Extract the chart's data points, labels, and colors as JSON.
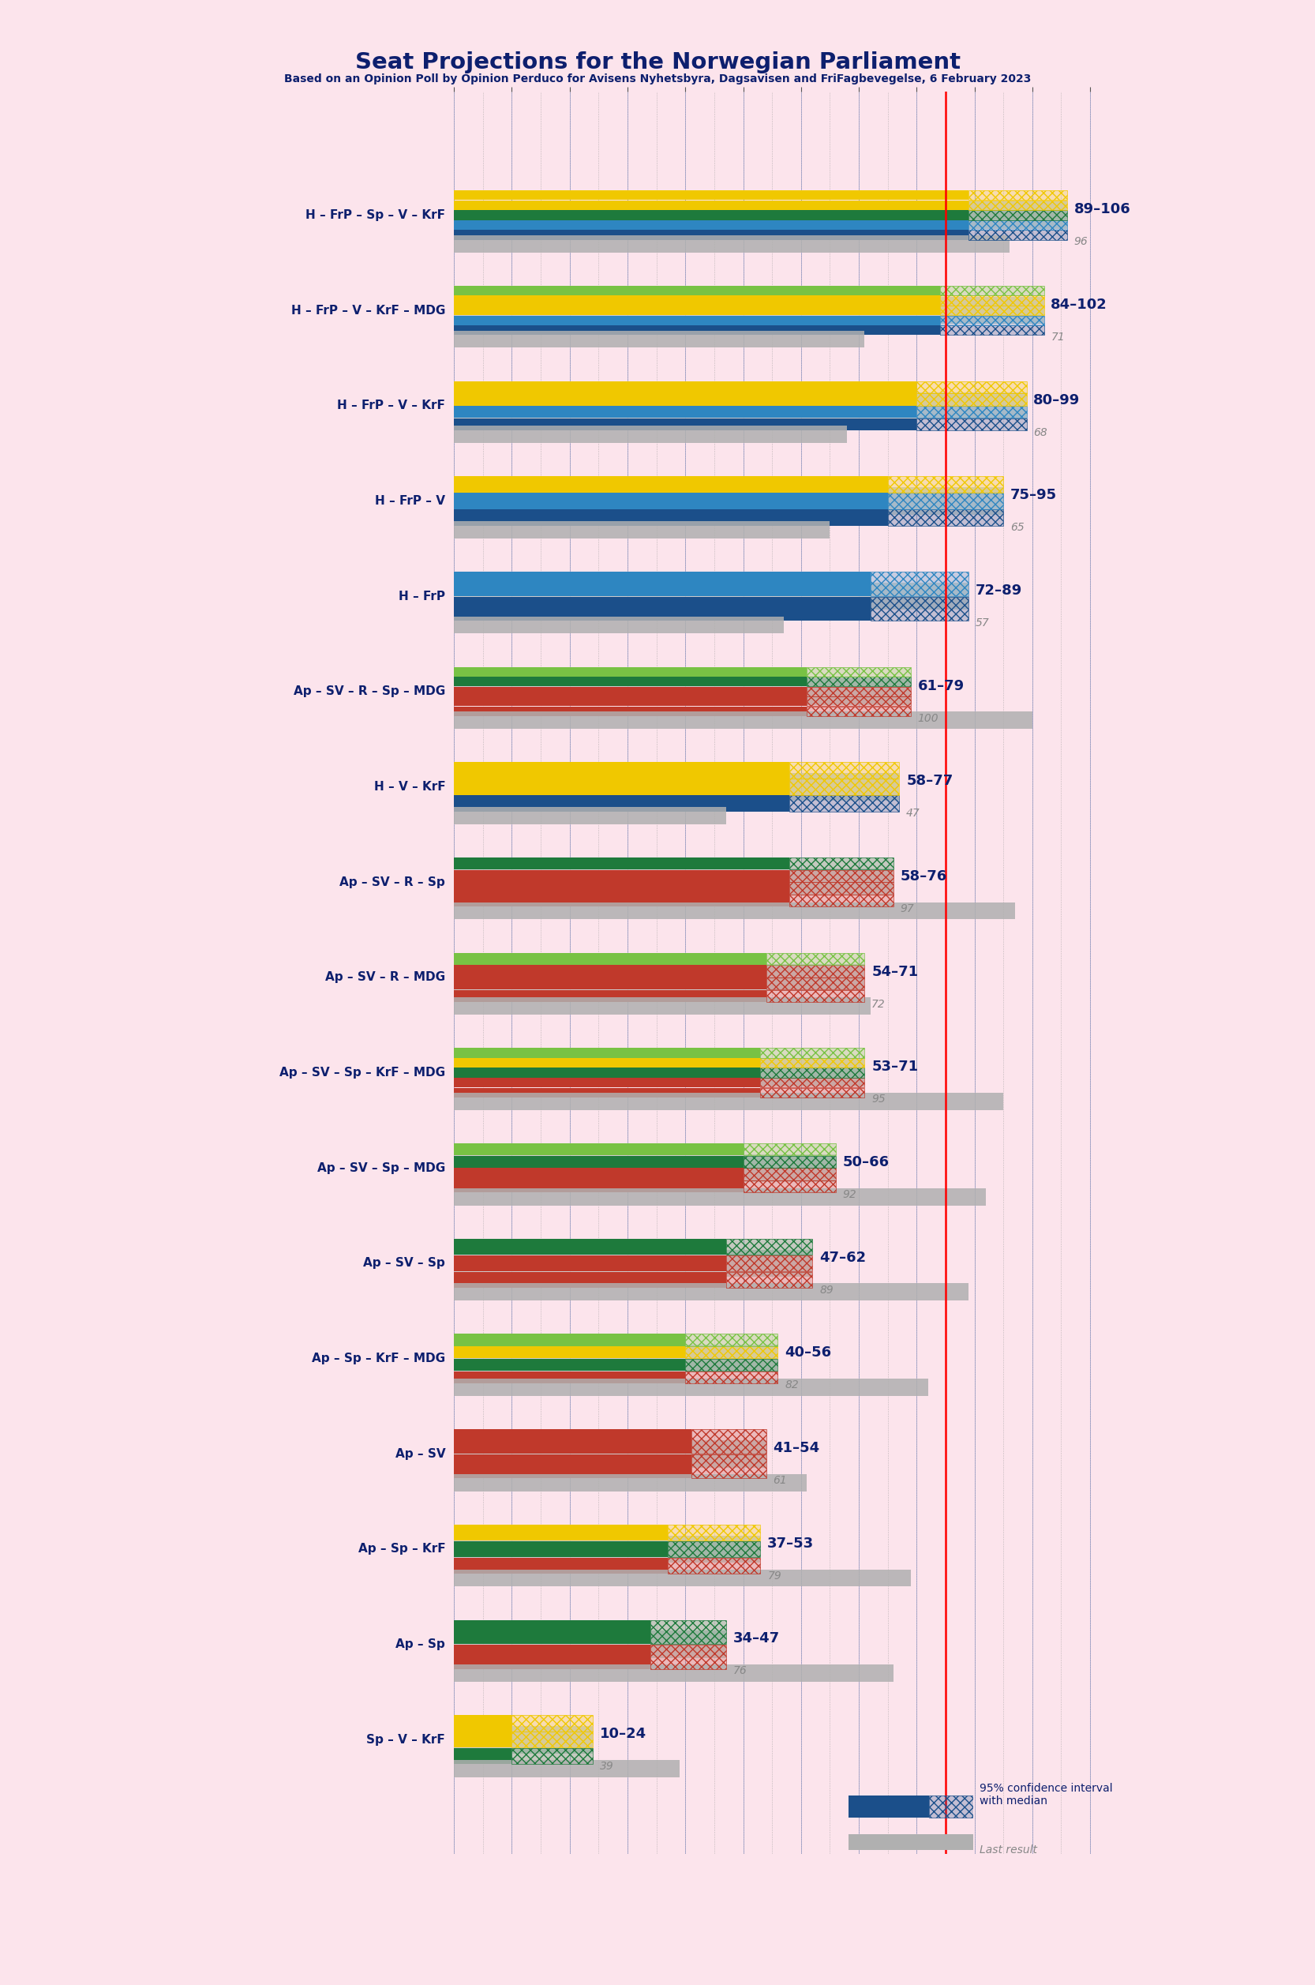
{
  "title": "Seat Projections for the Norwegian Parliament",
  "subtitle": "Based on an Opinion Poll by Opinion Perduco for Avisens Nyhetsbyra, Dagsavisen and FriFagbevegelse, 6 February 2023",
  "background_color": "#fce4ec",
  "title_color": "#0d1f6e",
  "coalitions": [
    {
      "name": "H – FrP – Sp – V – KrF",
      "range_low": 89,
      "range_high": 106,
      "last": 96,
      "underline": false
    },
    {
      "name": "H – FrP – V – KrF – MDG",
      "range_low": 84,
      "range_high": 102,
      "last": 71,
      "underline": false
    },
    {
      "name": "H – FrP – V – KrF",
      "range_low": 80,
      "range_high": 99,
      "last": 68,
      "underline": false
    },
    {
      "name": "H – FrP – V",
      "range_low": 75,
      "range_high": 95,
      "last": 65,
      "underline": false
    },
    {
      "name": "H – FrP",
      "range_low": 72,
      "range_high": 89,
      "last": 57,
      "underline": false
    },
    {
      "name": "Ap – SV – R – Sp – MDG",
      "range_low": 61,
      "range_high": 79,
      "last": 100,
      "underline": false
    },
    {
      "name": "H – V – KrF",
      "range_low": 58,
      "range_high": 77,
      "last": 47,
      "underline": false
    },
    {
      "name": "Ap – SV – R – Sp",
      "range_low": 58,
      "range_high": 76,
      "last": 97,
      "underline": false
    },
    {
      "name": "Ap – SV – R – MDG",
      "range_low": 54,
      "range_high": 71,
      "last": 72,
      "underline": false
    },
    {
      "name": "Ap – SV – Sp – KrF – MDG",
      "range_low": 53,
      "range_high": 71,
      "last": 95,
      "underline": false
    },
    {
      "name": "Ap – SV – Sp – MDG",
      "range_low": 50,
      "range_high": 66,
      "last": 92,
      "underline": false
    },
    {
      "name": "Ap – SV – Sp",
      "range_low": 47,
      "range_high": 62,
      "last": 89,
      "underline": false
    },
    {
      "name": "Ap – Sp – KrF – MDG",
      "range_low": 40,
      "range_high": 56,
      "last": 82,
      "underline": false
    },
    {
      "name": "Ap – SV",
      "range_low": 41,
      "range_high": 54,
      "last": 61,
      "underline": true
    },
    {
      "name": "Ap – Sp – KrF",
      "range_low": 37,
      "range_high": 53,
      "last": 79,
      "underline": false
    },
    {
      "name": "Ap – Sp",
      "range_low": 34,
      "range_high": 47,
      "last": 76,
      "underline": false
    },
    {
      "name": "Sp – V – KrF",
      "range_low": 10,
      "range_high": 24,
      "last": 39,
      "underline": false
    }
  ],
  "party_colors": {
    "H": "#1b4f8a",
    "FrP": "#2e86c1",
    "Sp": "#1e7a3c",
    "V": "#f0c800",
    "KrF": "#f0c800",
    "MDG": "#78c244",
    "Ap": "#c0392b",
    "SV": "#c0392b",
    "R": "#c0392b"
  },
  "majority_line": 85,
  "x_max": 115,
  "legend_ci_text": "95% confidence interval\nwith median",
  "legend_last_text": "Last result"
}
